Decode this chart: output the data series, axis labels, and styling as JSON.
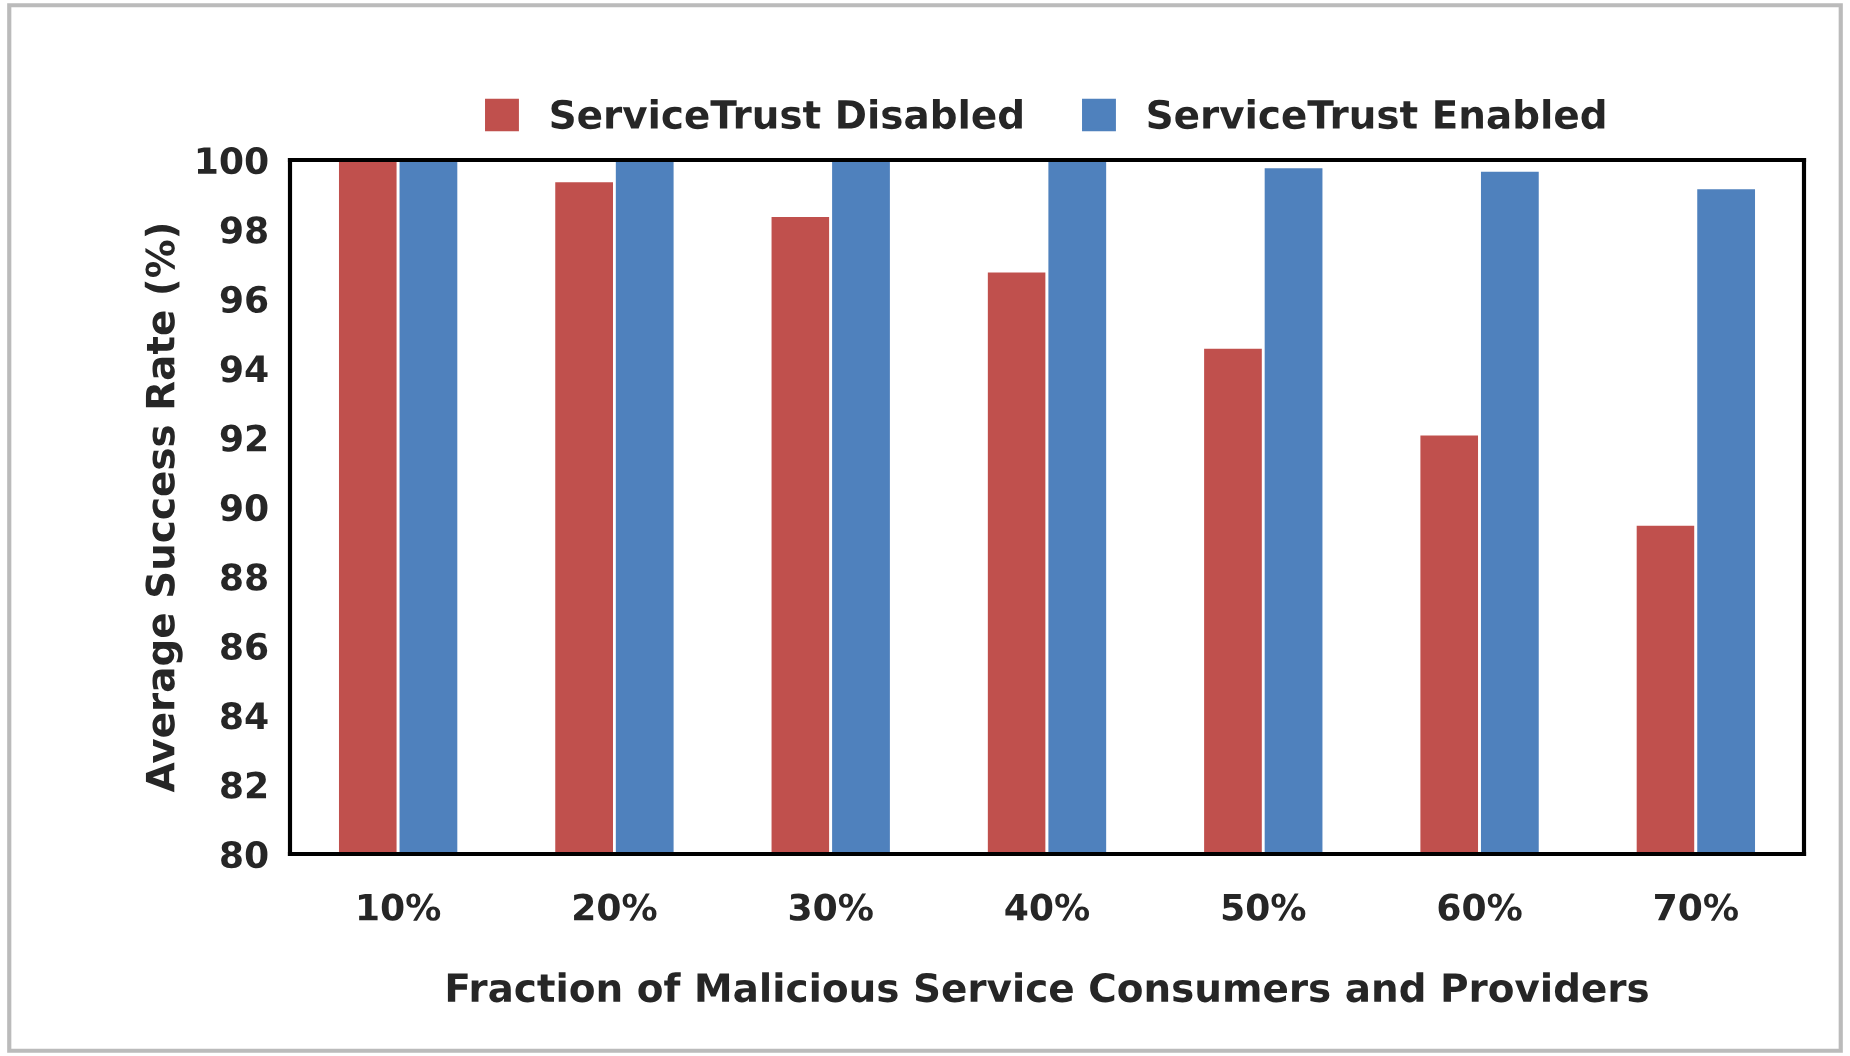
{
  "chart_data": {
    "type": "bar",
    "xlabel": "Fraction of Malicious Service Consumers and Providers",
    "ylabel": "Average Success Rate (%)",
    "categories": [
      "10%",
      "20%",
      "30%",
      "40%",
      "50%",
      "60%",
      "70%"
    ],
    "series": [
      {
        "name": "ServiceTrust Disabled",
        "color": "#c0504d",
        "values": [
          100,
          99.4,
          98.4,
          96.8,
          94.6,
          92.1,
          89.5
        ]
      },
      {
        "name": "ServiceTrust Enabled",
        "color": "#4f81bd",
        "values": [
          100,
          100,
          100,
          100,
          99.8,
          99.7,
          99.2
        ]
      }
    ],
    "ylim": [
      80,
      100
    ],
    "yticks": [
      80,
      82,
      84,
      86,
      88,
      90,
      92,
      94,
      96,
      98,
      100
    ],
    "grid": false,
    "legend": "top"
  }
}
